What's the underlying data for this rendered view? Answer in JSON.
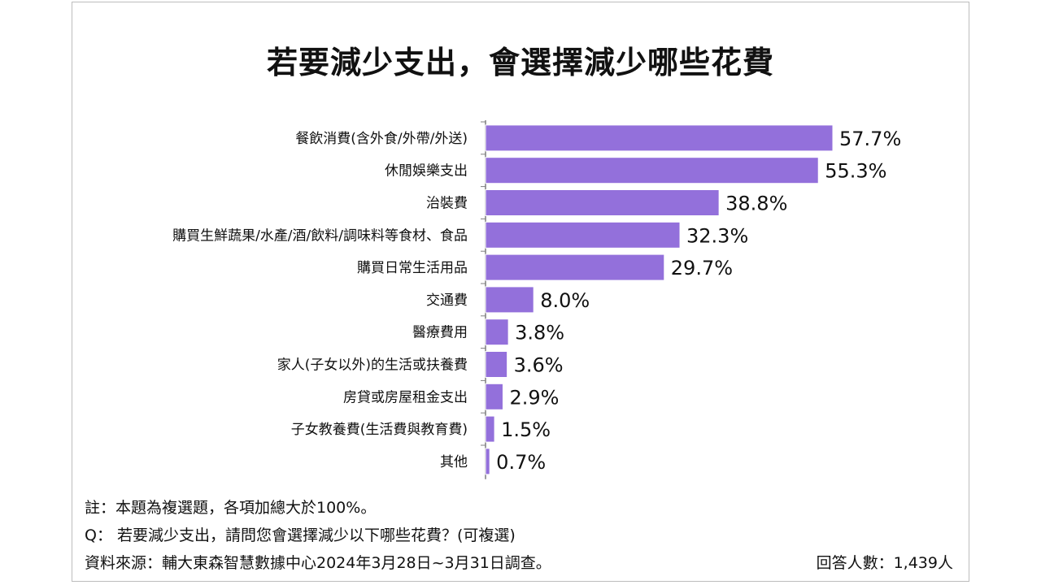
{
  "title": "若要減少支出，會選擇減少哪些花費",
  "notes": {
    "remark": "註：本題為複選題，各項加總大於100%。",
    "question": "Q： 若要減少支出，請問您會選擇減少以下哪些花費？(可複選)",
    "source": "資料來源：輔大東森智慧數據中心2024年3月28日~3月31日調查。",
    "respondents": "回答人數：1,439人"
  },
  "colors": {
    "bar": "#9370db",
    "bar_stroke": "#ffffff",
    "axis": "#7f7f7f"
  },
  "chart_data": {
    "type": "bar",
    "orientation": "horizontal",
    "title": "若要減少支出，會選擇減少哪些花費",
    "unit": "%",
    "categories": [
      "餐飲消費(含外食/外帶/外送)",
      "休閒娛樂支出",
      "治裝費",
      "購買生鮮蔬果/水產/酒/飲料/調味料等食材、食品",
      "購買日常生活用品",
      "交通費",
      "醫療費用",
      "家人(子女以外)的生活或扶養費",
      "房貸或房屋租金支出",
      "子女教養費(生活費與教育費)",
      "其他"
    ],
    "values": [
      57.7,
      55.3,
      38.8,
      32.3,
      29.7,
      8.0,
      3.8,
      3.6,
      2.9,
      1.5,
      0.7
    ],
    "value_labels": [
      "57.7%",
      "55.3%",
      "38.8%",
      "32.3%",
      "29.7%",
      "8.0%",
      "3.8%",
      "3.6%",
      "2.9%",
      "1.5%",
      "0.7%"
    ],
    "xlim": [
      0,
      60
    ],
    "grid": false,
    "legend": "none"
  }
}
